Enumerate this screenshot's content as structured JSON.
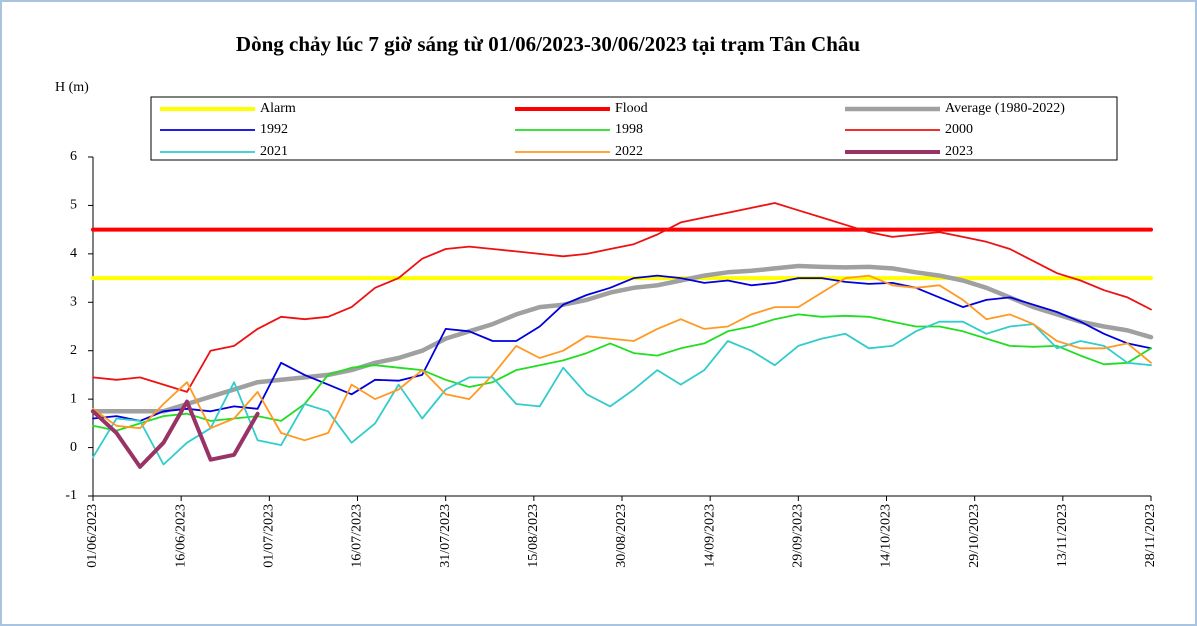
{
  "chart_data": {
    "type": "line",
    "title": "Dòng chảy lúc 7 giờ sáng từ 01/06/2023-30/06/2023 tại trạm Tân Châu",
    "y_label": "H (m)",
    "x": [
      0,
      4,
      8,
      12,
      16,
      20,
      24,
      28,
      32,
      36,
      40,
      44,
      48,
      52,
      56,
      60,
      64,
      68,
      72,
      76,
      80,
      84,
      88,
      92,
      96,
      100,
      104,
      108,
      112,
      116,
      120,
      124,
      128,
      132,
      136,
      140,
      144,
      148,
      152,
      156,
      160,
      164,
      168,
      172,
      176,
      180
    ],
    "xlim": [
      0,
      180
    ],
    "xticks": [
      {
        "value": 0,
        "label": "01/06/2023"
      },
      {
        "value": 15,
        "label": "16/06/2023"
      },
      {
        "value": 30,
        "label": "01/07/2023"
      },
      {
        "value": 45,
        "label": "16/07/2023"
      },
      {
        "value": 60,
        "label": "31/07/2023"
      },
      {
        "value": 75,
        "label": "15/08/2023"
      },
      {
        "value": 90,
        "label": "30/08/2023"
      },
      {
        "value": 105,
        "label": "14/09/2023"
      },
      {
        "value": 120,
        "label": "29/09/2023"
      },
      {
        "value": 135,
        "label": "14/10/2023"
      },
      {
        "value": 150,
        "label": "29/10/2023"
      },
      {
        "value": 165,
        "label": "13/11/2023"
      },
      {
        "value": 180,
        "label": "28/11/2023"
      }
    ],
    "ylim": [
      -1,
      6
    ],
    "yticks": [
      -1,
      0,
      1,
      2,
      3,
      4,
      5,
      6
    ],
    "series": [
      {
        "name": "Alarm",
        "color": "#ffff00",
        "width": 4,
        "values": [
          3.5,
          3.5,
          3.5,
          3.5,
          3.5,
          3.5,
          3.5,
          3.5,
          3.5,
          3.5,
          3.5,
          3.5,
          3.5,
          3.5,
          3.5,
          3.5,
          3.5,
          3.5,
          3.5,
          3.5,
          3.5,
          3.5,
          3.5,
          3.5,
          3.5,
          3.5,
          3.5,
          3.5,
          3.5,
          3.5,
          3.5,
          3.5,
          3.5,
          3.5,
          3.5,
          3.5,
          3.5,
          3.5,
          3.5,
          3.5,
          3.5,
          3.5,
          3.5,
          3.5,
          3.5,
          3.5
        ]
      },
      {
        "name": "Flood",
        "color": "#ff0000",
        "width": 4,
        "values": [
          4.5,
          4.5,
          4.5,
          4.5,
          4.5,
          4.5,
          4.5,
          4.5,
          4.5,
          4.5,
          4.5,
          4.5,
          4.5,
          4.5,
          4.5,
          4.5,
          4.5,
          4.5,
          4.5,
          4.5,
          4.5,
          4.5,
          4.5,
          4.5,
          4.5,
          4.5,
          4.5,
          4.5,
          4.5,
          4.5,
          4.5,
          4.5,
          4.5,
          4.5,
          4.5,
          4.5,
          4.5,
          4.5,
          4.5,
          4.5,
          4.5,
          4.5,
          4.5,
          4.5,
          4.5,
          4.5
        ]
      },
      {
        "name": "Average (1980-2022)",
        "color": "#a0a0a0",
        "width": 4.5,
        "values": [
          0.75,
          0.75,
          0.75,
          0.75,
          0.9,
          1.05,
          1.2,
          1.35,
          1.4,
          1.45,
          1.5,
          1.6,
          1.75,
          1.85,
          2.0,
          2.25,
          2.4,
          2.55,
          2.75,
          2.9,
          2.95,
          3.05,
          3.2,
          3.3,
          3.35,
          3.45,
          3.55,
          3.62,
          3.65,
          3.7,
          3.75,
          3.73,
          3.72,
          3.73,
          3.7,
          3.62,
          3.55,
          3.45,
          3.3,
          3.1,
          2.9,
          2.75,
          2.6,
          2.5,
          2.42,
          2.28
        ]
      },
      {
        "name": "1992",
        "color": "#0000dd",
        "width": 1.8,
        "values": [
          0.6,
          0.65,
          0.55,
          0.75,
          0.8,
          0.75,
          0.85,
          0.8,
          1.75,
          1.5,
          1.3,
          1.1,
          1.4,
          1.38,
          1.5,
          2.45,
          2.4,
          2.2,
          2.2,
          2.5,
          2.95,
          3.15,
          3.3,
          3.5,
          3.55,
          3.5,
          3.4,
          3.45,
          3.35,
          3.4,
          3.5,
          3.5,
          3.42,
          3.38,
          3.4,
          3.3,
          3.1,
          2.9,
          3.05,
          3.1,
          2.95,
          2.8,
          2.6,
          2.35,
          2.15,
          2.05
        ]
      },
      {
        "name": "1998",
        "color": "#22dd22",
        "width": 1.8,
        "values": [
          0.45,
          0.35,
          0.5,
          0.65,
          0.7,
          0.55,
          0.6,
          0.65,
          0.55,
          0.9,
          1.5,
          1.65,
          1.7,
          1.65,
          1.6,
          1.4,
          1.25,
          1.35,
          1.6,
          1.7,
          1.8,
          1.95,
          2.15,
          1.95,
          1.9,
          2.05,
          2.15,
          2.4,
          2.5,
          2.65,
          2.75,
          2.7,
          2.72,
          2.7,
          2.6,
          2.5,
          2.5,
          2.4,
          2.25,
          2.1,
          2.08,
          2.1,
          1.9,
          1.72,
          1.75,
          2.05
        ]
      },
      {
        "name": "2000",
        "color": "#ee1111",
        "width": 1.8,
        "values": [
          1.45,
          1.4,
          1.45,
          1.3,
          1.15,
          2.0,
          2.1,
          2.45,
          2.7,
          2.65,
          2.7,
          2.9,
          3.3,
          3.5,
          3.9,
          4.1,
          4.15,
          4.1,
          4.05,
          4.0,
          3.95,
          4.0,
          4.1,
          4.2,
          4.4,
          4.65,
          4.75,
          4.85,
          4.95,
          5.05,
          4.9,
          4.75,
          4.6,
          4.45,
          4.35,
          4.4,
          4.45,
          4.35,
          4.25,
          4.1,
          3.85,
          3.6,
          3.45,
          3.25,
          3.1,
          2.85
        ]
      },
      {
        "name": "2021",
        "color": "#33cccc",
        "width": 1.8,
        "values": [
          -0.2,
          0.6,
          0.55,
          -0.35,
          0.1,
          0.4,
          1.35,
          0.15,
          0.05,
          0.9,
          0.75,
          0.1,
          0.5,
          1.3,
          0.6,
          1.2,
          1.45,
          1.45,
          0.9,
          0.85,
          1.65,
          1.1,
          0.85,
          1.2,
          1.6,
          1.3,
          1.6,
          2.2,
          2.0,
          1.7,
          2.1,
          2.25,
          2.35,
          2.05,
          2.1,
          2.4,
          2.6,
          2.6,
          2.35,
          2.5,
          2.55,
          2.05,
          2.2,
          2.1,
          1.75,
          1.7
        ]
      },
      {
        "name": "2022",
        "color": "#ff9922",
        "width": 1.8,
        "values": [
          0.8,
          0.45,
          0.4,
          0.9,
          1.35,
          0.4,
          0.6,
          1.15,
          0.3,
          0.15,
          0.3,
          1.3,
          1.0,
          1.2,
          1.6,
          1.1,
          1.0,
          1.5,
          2.1,
          1.85,
          2.0,
          2.3,
          2.25,
          2.2,
          2.45,
          2.65,
          2.45,
          2.5,
          2.75,
          2.9,
          2.9,
          3.2,
          3.5,
          3.55,
          3.35,
          3.3,
          3.35,
          3.05,
          2.65,
          2.75,
          2.55,
          2.2,
          2.05,
          2.05,
          2.15,
          1.75
        ]
      },
      {
        "name": "2023",
        "color": "#993366",
        "width": 4,
        "values": [
          0.75,
          0.3,
          -0.4,
          0.1,
          0.95,
          -0.25,
          -0.15,
          0.7,
          null,
          null,
          null,
          null,
          null,
          null,
          null,
          null,
          null,
          null,
          null,
          null,
          null,
          null,
          null,
          null,
          null,
          null,
          null,
          null,
          null,
          null,
          null,
          null,
          null,
          null,
          null,
          null,
          null,
          null,
          null,
          null,
          null,
          null,
          null,
          null,
          null,
          null
        ]
      }
    ]
  }
}
